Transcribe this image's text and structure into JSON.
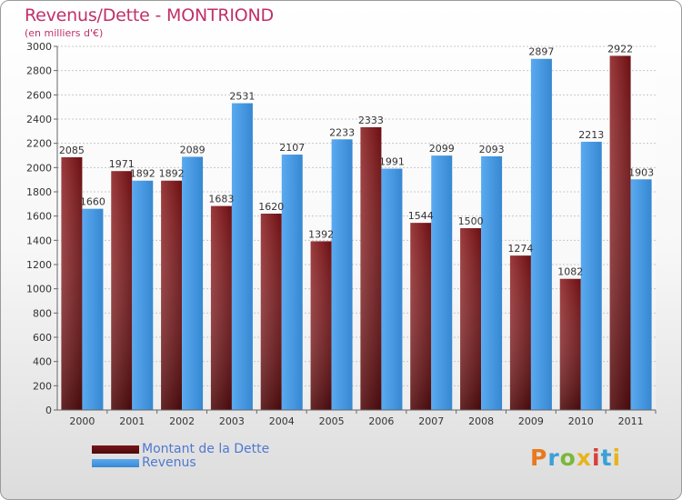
{
  "header": {
    "title": "Revenus/Dette - MONTRIOND",
    "subtitle": "(en milliers d'€)"
  },
  "colors": {
    "dette": "#7a1518",
    "dette_light": "#9a3a3c",
    "revenus": "#3d94dd",
    "revenus_light": "#5aaaf0",
    "title": "#c0306a",
    "legend_text": "#5078d0"
  },
  "legend": {
    "items": [
      {
        "label": "Montant de la Dette",
        "color": "#7a1518"
      },
      {
        "label": "Revenus",
        "color": "#3d94dd"
      }
    ]
  },
  "logo": {
    "text": "Proxiti"
  },
  "chart_data": {
    "type": "bar",
    "title": "Revenus/Dette - MONTRIOND",
    "subtitle": "(en milliers d'€)",
    "categories": [
      "2000",
      "2001",
      "2002",
      "2003",
      "2004",
      "2005",
      "2006",
      "2007",
      "2008",
      "2009",
      "2010",
      "2011"
    ],
    "series": [
      {
        "name": "Montant de la Dette",
        "values": [
          2085,
          1971,
          1892,
          1683,
          1620,
          1392,
          2333,
          1544,
          1500,
          1274,
          1082,
          2922
        ]
      },
      {
        "name": "Revenus",
        "values": [
          1660,
          1892,
          2089,
          2531,
          2107,
          2233,
          1991,
          2099,
          2093,
          2897,
          2213,
          1903
        ]
      }
    ],
    "ylim": [
      0,
      3000
    ],
    "yticks": [
      0,
      200,
      400,
      600,
      800,
      1000,
      1200,
      1400,
      1600,
      1800,
      2000,
      2200,
      2400,
      2600,
      2800,
      3000
    ],
    "grid": true,
    "legend_position": "bottom-left"
  }
}
